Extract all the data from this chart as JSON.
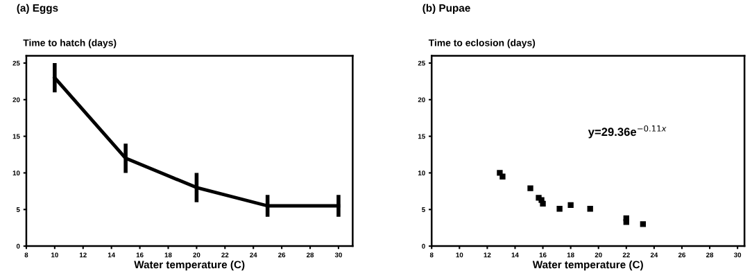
{
  "chart_data": [
    {
      "type": "line",
      "title": "(a) Eggs",
      "ylabel": "Time to hatch (days)",
      "xlabel": "Water temperature (C)",
      "x": [
        10,
        15,
        20,
        25,
        30
      ],
      "series": [
        {
          "color": "#000000",
          "values": [
            23,
            12,
            8,
            5.5,
            5.5
          ],
          "errors": [
            2,
            2,
            2,
            1.5,
            1.5
          ]
        }
      ],
      "xlim": [
        8,
        31
      ],
      "xticks": [
        8,
        10,
        12,
        14,
        16,
        18,
        20,
        22,
        24,
        26,
        28,
        30
      ],
      "ylim": [
        0,
        26
      ],
      "yticks": [
        0,
        5,
        10,
        15,
        20,
        25
      ],
      "grid": false,
      "marker": "none",
      "line_style": "solid"
    },
    {
      "type": "scatter",
      "title": "(b) Pupae",
      "ylabel": "Time to eclosion (days)",
      "xlabel": "Water temperature (C)",
      "x": [
        12.9,
        13.1,
        15.1,
        15.7,
        15.9,
        16.0,
        17.2,
        18.0,
        19.4,
        22.0,
        22.0,
        23.2
      ],
      "series": [
        {
          "color": "#000000",
          "values": [
            10.0,
            9.5,
            7.9,
            6.6,
            6.3,
            5.8,
            5.1,
            5.6,
            5.1,
            3.8,
            3.3,
            3.0
          ]
        }
      ],
      "xlim": [
        8,
        30.5
      ],
      "xticks": [
        8,
        10,
        12,
        14,
        16,
        18,
        20,
        22,
        24,
        26,
        28,
        30
      ],
      "ylim": [
        0,
        26
      ],
      "yticks": [
        0,
        5,
        10,
        15,
        20,
        25
      ],
      "annotations": [
        "y=29.36e$^{−0.11x}$"
      ],
      "grid": false,
      "marker": "square"
    }
  ]
}
